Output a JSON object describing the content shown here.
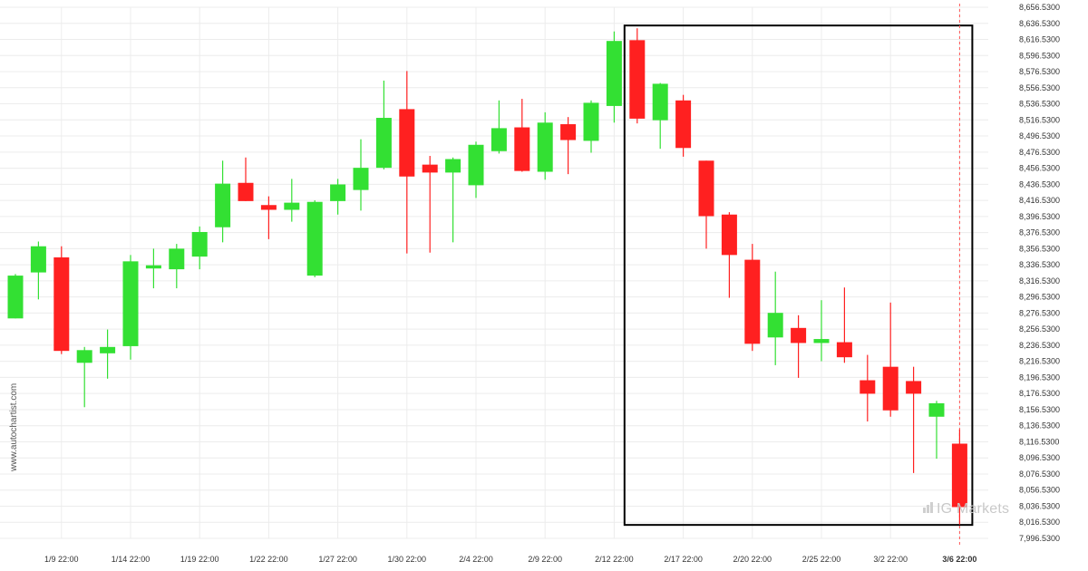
{
  "chart_data": {
    "type": "candlestick",
    "ylim": [
      7986.53,
      8656.53
    ],
    "y_ticks": [
      "8,656.5300",
      "8,636.5300",
      "8,616.5300",
      "8,596.5300",
      "8,576.5300",
      "8,556.5300",
      "8,536.5300",
      "8,516.5300",
      "8,496.5300",
      "8,476.5300",
      "8,456.5300",
      "8,436.5300",
      "8,416.5300",
      "8,396.5300",
      "8,376.5300",
      "8,356.5300",
      "8,336.5300",
      "8,316.5300",
      "8,296.5300",
      "8,276.5300",
      "8,256.5300",
      "8,236.5300",
      "8,216.5300",
      "8,196.5300",
      "8,176.5300",
      "8,156.5300",
      "8,136.5300",
      "8,116.5300",
      "8,096.5300",
      "8,076.5300",
      "8,056.5300",
      "8,036.5300",
      "8,016.5300",
      "7,996.5300"
    ],
    "x_tick_labels": [
      {
        "label": "1/9 22:00",
        "candle": 2
      },
      {
        "label": "1/14 22:00",
        "candle": 5
      },
      {
        "label": "1/19 22:00",
        "candle": 8
      },
      {
        "label": "1/22 22:00",
        "candle": 11
      },
      {
        "label": "1/27 22:00",
        "candle": 14
      },
      {
        "label": "1/30 22:00",
        "candle": 17
      },
      {
        "label": "2/4 22:00",
        "candle": 20
      },
      {
        "label": "2/9 22:00",
        "candle": 23
      },
      {
        "label": "2/12 22:00",
        "candle": 26
      },
      {
        "label": "2/17 22:00",
        "candle": 29
      },
      {
        "label": "2/20 22:00",
        "candle": 32
      },
      {
        "label": "2/25 22:00",
        "candle": 35
      },
      {
        "label": "3/2 22:00",
        "candle": 38
      },
      {
        "label": "3/6 22:00",
        "candle": 41,
        "bold": true
      }
    ],
    "candles": [
      {
        "o": 8264,
        "h": 8320,
        "l": 8264,
        "c": 8318
      },
      {
        "o": 8322,
        "h": 8361,
        "l": 8288,
        "c": 8355
      },
      {
        "o": 8341,
        "h": 8355,
        "l": 8219,
        "c": 8223
      },
      {
        "o": 8208,
        "h": 8228,
        "l": 8152,
        "c": 8224
      },
      {
        "o": 8220,
        "h": 8250,
        "l": 8188,
        "c": 8228
      },
      {
        "o": 8229,
        "h": 8344,
        "l": 8212,
        "c": 8336
      },
      {
        "o": 8327,
        "h": 8352,
        "l": 8302,
        "c": 8331
      },
      {
        "o": 8326,
        "h": 8358,
        "l": 8302,
        "c": 8352
      },
      {
        "o": 8342,
        "h": 8380,
        "l": 8326,
        "c": 8373
      },
      {
        "o": 8379,
        "h": 8463,
        "l": 8360,
        "c": 8434
      },
      {
        "o": 8435,
        "h": 8467,
        "l": 8412,
        "c": 8412
      },
      {
        "o": 8407,
        "h": 8418,
        "l": 8364,
        "c": 8401
      },
      {
        "o": 8401,
        "h": 8440,
        "l": 8386,
        "c": 8410
      },
      {
        "o": 8318,
        "h": 8413,
        "l": 8316,
        "c": 8411
      },
      {
        "o": 8412,
        "h": 8440,
        "l": 8395,
        "c": 8433
      },
      {
        "o": 8426,
        "h": 8490,
        "l": 8400,
        "c": 8454
      },
      {
        "o": 8454,
        "h": 8564,
        "l": 8452,
        "c": 8517
      },
      {
        "o": 8528,
        "h": 8576,
        "l": 8346,
        "c": 8443
      },
      {
        "o": 8458,
        "h": 8469,
        "l": 8347,
        "c": 8448
      },
      {
        "o": 8448,
        "h": 8467,
        "l": 8360,
        "c": 8465
      },
      {
        "o": 8432,
        "h": 8487,
        "l": 8416,
        "c": 8483
      },
      {
        "o": 8475,
        "h": 8539,
        "l": 8472,
        "c": 8504
      },
      {
        "o": 8505,
        "h": 8541,
        "l": 8449,
        "c": 8450
      },
      {
        "o": 8449,
        "h": 8524,
        "l": 8439,
        "c": 8511
      },
      {
        "o": 8509,
        "h": 8518,
        "l": 8446,
        "c": 8489
      },
      {
        "o": 8488,
        "h": 8539,
        "l": 8473,
        "c": 8536
      },
      {
        "o": 8532,
        "h": 8626,
        "l": 8511,
        "c": 8614
      },
      {
        "o": 8615,
        "h": 8630,
        "l": 8510,
        "c": 8516
      },
      {
        "o": 8514,
        "h": 8561,
        "l": 8478,
        "c": 8560
      },
      {
        "o": 8539,
        "h": 8546,
        "l": 8468,
        "c": 8479
      },
      {
        "o": 8463,
        "h": 8463,
        "l": 8352,
        "c": 8393
      },
      {
        "o": 8395,
        "h": 8398,
        "l": 8290,
        "c": 8344
      },
      {
        "o": 8338,
        "h": 8358,
        "l": 8223,
        "c": 8232
      },
      {
        "o": 8240,
        "h": 8323,
        "l": 8205,
        "c": 8271
      },
      {
        "o": 8252,
        "h": 8268,
        "l": 8189,
        "c": 8233
      },
      {
        "o": 8233,
        "h": 8287,
        "l": 8210,
        "c": 8238
      },
      {
        "o": 8234,
        "h": 8303,
        "l": 8208,
        "c": 8215
      },
      {
        "o": 8186,
        "h": 8218,
        "l": 8134,
        "c": 8169
      },
      {
        "o": 8203,
        "h": 8284,
        "l": 8140,
        "c": 8148
      },
      {
        "o": 8185,
        "h": 8203,
        "l": 8069,
        "c": 8169
      },
      {
        "o": 8140,
        "h": 8160,
        "l": 8087,
        "c": 8157
      },
      {
        "o": 8106,
        "h": 8124,
        "l": 8004,
        "c": 8026
      }
    ],
    "colors": {
      "up": "#33e033",
      "down": "#ff2020",
      "rectangle": "#000000",
      "grid": "#ececec",
      "current_line": "#ff5555"
    },
    "pattern_box": {
      "from_candle": 27,
      "to_candle": 41,
      "top": 8633.5,
      "bottom": 8003.5
    },
    "current_price_marker_candle": 41
  },
  "watermark": {
    "site": "www.autochartist.com",
    "logo_text": "IG Markets"
  }
}
